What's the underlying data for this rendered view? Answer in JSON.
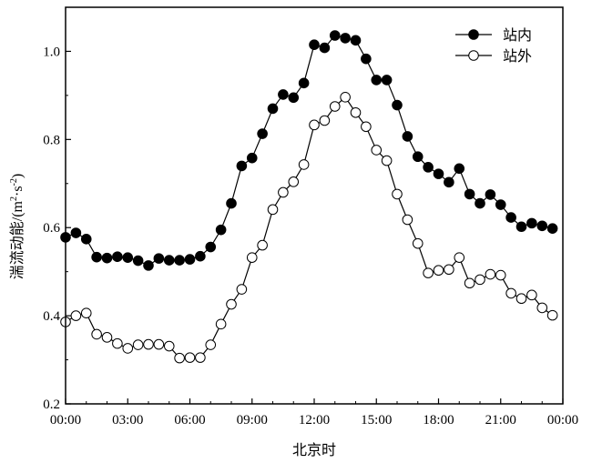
{
  "chart_data": {
    "type": "line",
    "xlabel": "北京时",
    "ylabel": "湍流动能/(m²·s⁻²)",
    "ylabel_parts": {
      "main": "湍流动能/(m",
      "sup1": "2",
      "mid": "·s",
      "sup2": "-2",
      "end": ")"
    },
    "xlim": [
      0,
      24
    ],
    "ylim": [
      0.2,
      1.1
    ],
    "x_ticks": [
      {
        "value": 0,
        "label": "00:00"
      },
      {
        "value": 3,
        "label": "03:00"
      },
      {
        "value": 6,
        "label": "06:00"
      },
      {
        "value": 9,
        "label": "09:00"
      },
      {
        "value": 12,
        "label": "12:00"
      },
      {
        "value": 15,
        "label": "15:00"
      },
      {
        "value": 18,
        "label": "18:00"
      },
      {
        "value": 21,
        "label": "21:00"
      },
      {
        "value": 24,
        "label": "00:00"
      }
    ],
    "y_ticks": [
      {
        "value": 0.2,
        "label": "0.2"
      },
      {
        "value": 0.4,
        "label": "0.4"
      },
      {
        "value": 0.6,
        "label": "0.6"
      },
      {
        "value": 0.8,
        "label": "0.8"
      },
      {
        "value": 1.0,
        "label": "1.0"
      }
    ],
    "legend_position": "top-right",
    "x": [
      0,
      0.5,
      1,
      1.5,
      2,
      2.5,
      3,
      3.5,
      4,
      4.5,
      5,
      5.5,
      6,
      6.5,
      7,
      7.5,
      8,
      8.5,
      9,
      9.5,
      10,
      10.5,
      11,
      11.5,
      12,
      12.5,
      13,
      13.5,
      14,
      14.5,
      15,
      15.5,
      16,
      16.5,
      17,
      17.5,
      18,
      18.5,
      19,
      19.5,
      20,
      20.5,
      21,
      21.5,
      22,
      22.5,
      23,
      23.5
    ],
    "series": [
      {
        "name": "站内",
        "marker": "filled-circle",
        "color": "#000000",
        "values": [
          0.578,
          0.588,
          0.574,
          0.533,
          0.531,
          0.534,
          0.532,
          0.525,
          0.514,
          0.53,
          0.526,
          0.526,
          0.528,
          0.535,
          0.556,
          0.595,
          0.655,
          0.74,
          0.758,
          0.813,
          0.87,
          0.902,
          0.895,
          0.928,
          1.015,
          1.008,
          1.036,
          1.03,
          1.025,
          0.983,
          0.935,
          0.935,
          0.878,
          0.807,
          0.761,
          0.737,
          0.722,
          0.703,
          0.734,
          0.676,
          0.655,
          0.675,
          0.652,
          0.623,
          0.602,
          0.61,
          0.604,
          0.598
        ]
      },
      {
        "name": "站外",
        "marker": "open-circle",
        "color": "#000000",
        "values": [
          0.386,
          0.4,
          0.406,
          0.358,
          0.351,
          0.337,
          0.326,
          0.334,
          0.335,
          0.335,
          0.331,
          0.304,
          0.305,
          0.305,
          0.334,
          0.381,
          0.426,
          0.46,
          0.532,
          0.56,
          0.641,
          0.68,
          0.704,
          0.743,
          0.833,
          0.843,
          0.875,
          0.896,
          0.861,
          0.829,
          0.776,
          0.752,
          0.676,
          0.618,
          0.564,
          0.497,
          0.503,
          0.505,
          0.532,
          0.474,
          0.482,
          0.494,
          0.492,
          0.451,
          0.439,
          0.447,
          0.418,
          0.401
        ]
      }
    ]
  }
}
